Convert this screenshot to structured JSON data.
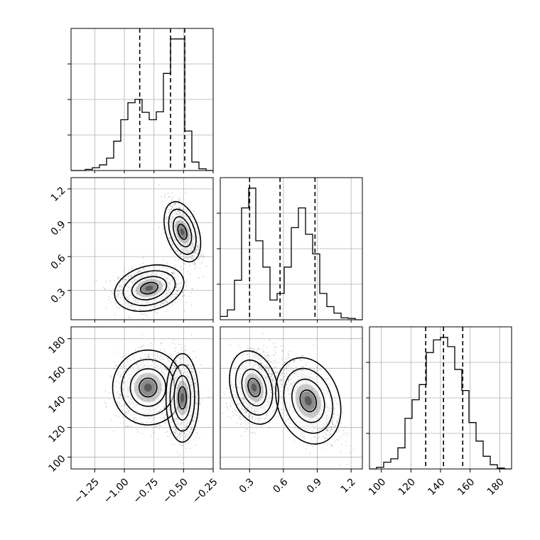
{
  "chart_data": {
    "type": "corner",
    "parameters": [
      {
        "range": [
          -1.45,
          -0.25
        ],
        "ticks": [
          -1.25,
          -1.0,
          -0.75,
          -0.5,
          -0.25
        ],
        "tick_labels": [
          "−1.25",
          "−1.00",
          "−0.75",
          "−0.50",
          "−0.25"
        ],
        "quantiles": [
          -0.87,
          -0.61,
          -0.49
        ]
      },
      {
        "range": [
          0.04,
          1.3
        ],
        "ticks": [
          0.3,
          0.6,
          0.9,
          1.2
        ],
        "tick_labels": [
          "0.3",
          "0.6",
          "0.9",
          "1.2"
        ],
        "quantiles": [
          0.3,
          0.57,
          0.88
        ]
      },
      {
        "range": [
          92,
          188
        ],
        "ticks": [
          100,
          120,
          140,
          160,
          180
        ],
        "tick_labels": [
          "100",
          "120",
          "140",
          "160",
          "180"
        ],
        "quantiles": [
          130,
          142,
          155
        ]
      }
    ],
    "histograms": [
      {
        "param": 0,
        "bin_edges": [
          -1.45,
          -1.39,
          -1.33,
          -1.27,
          -1.21,
          -1.15,
          -1.09,
          -1.03,
          -0.97,
          -0.91,
          -0.85,
          -0.79,
          -0.73,
          -0.67,
          -0.61,
          -0.55,
          -0.49,
          -0.43,
          -0.37,
          -0.31,
          -0.25
        ],
        "counts": [
          0,
          0,
          2,
          5,
          10,
          22,
          52,
          90,
          120,
          126,
          103,
          90,
          104,
          172,
          233,
          233,
          70,
          15,
          3,
          0
        ]
      },
      {
        "param": 1,
        "bin_edges": [
          0.04,
          0.103,
          0.166,
          0.229,
          0.292,
          0.355,
          0.418,
          0.481,
          0.544,
          0.607,
          0.67,
          0.733,
          0.796,
          0.859,
          0.922,
          0.985,
          1.048,
          1.111,
          1.174,
          1.237,
          1.3
        ],
        "counts": [
          5,
          15,
          60,
          170,
          200,
          120,
          80,
          30,
          40,
          80,
          140,
          170,
          130,
          100,
          40,
          20,
          10,
          3,
          2,
          0
        ]
      },
      {
        "param": 2,
        "bin_edges": [
          92,
          96.8,
          101.6,
          106.4,
          111.2,
          116,
          120.8,
          125.6,
          130.4,
          135.2,
          140,
          144.8,
          149.6,
          154.4,
          159.2,
          164,
          168.8,
          173.6,
          178.4,
          183.2,
          188
        ],
        "counts": [
          0,
          2,
          8,
          12,
          25,
          60,
          82,
          100,
          138,
          153,
          156,
          145,
          118,
          93,
          55,
          33,
          15,
          5,
          1,
          0
        ]
      }
    ],
    "scatter_panels": [
      {
        "x_param": 0,
        "y_param": 1,
        "clusters": [
          {
            "cx": -0.79,
            "cy": 0.32,
            "sx": 0.13,
            "sy": 0.085,
            "rho": 0.1,
            "weight": 0.5
          },
          {
            "cx": -0.51,
            "cy": 0.82,
            "sx": 0.06,
            "sy": 0.12,
            "rho": -0.5,
            "weight": 0.5
          }
        ]
      },
      {
        "x_param": 0,
        "y_param": 2,
        "clusters": [
          {
            "cx": -0.8,
            "cy": 147,
            "sx": 0.13,
            "sy": 11,
            "rho": 0.0,
            "weight": 0.5
          },
          {
            "cx": -0.51,
            "cy": 140,
            "sx": 0.06,
            "sy": 13,
            "rho": 0.0,
            "weight": 0.5
          }
        ]
      },
      {
        "x_param": 1,
        "y_param": 2,
        "clusters": [
          {
            "cx": 0.34,
            "cy": 147,
            "sx": 0.09,
            "sy": 11,
            "rho": 0.2,
            "weight": 0.5
          },
          {
            "cx": 0.82,
            "cy": 138,
            "sx": 0.12,
            "sy": 13,
            "rho": -0.5,
            "weight": 0.5
          }
        ]
      }
    ],
    "contour_levels_sigma": [
      0.5,
      1.0,
      1.5,
      2.0
    ],
    "colors": {
      "ink": "#000000",
      "grid": "#b0b0b0",
      "points": "#000000",
      "density": "#404040"
    },
    "grid": true
  }
}
